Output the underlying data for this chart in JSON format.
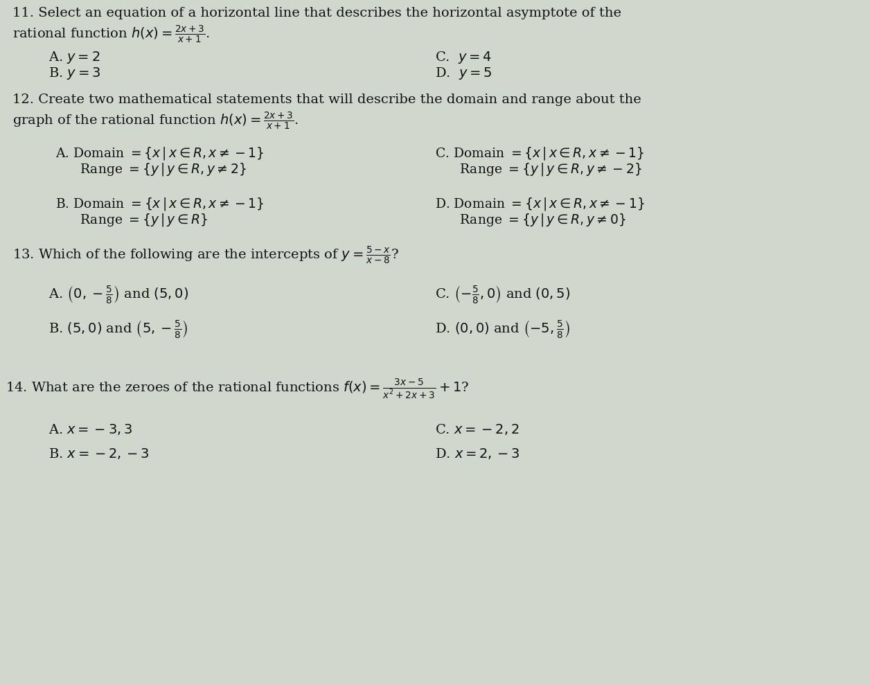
{
  "background_color": "#d0d8ce",
  "text_color": "#111111",
  "fig_width": 12.56,
  "fig_height": 9.89,
  "dpi": 100
}
